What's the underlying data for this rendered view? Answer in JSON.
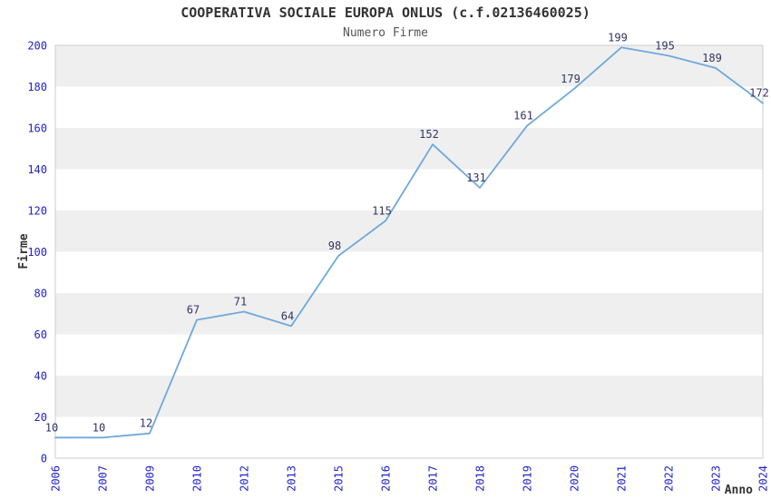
{
  "chart_data": {
    "type": "line",
    "title": "COOPERATIVA SOCIALE EUROPA ONLUS (c.f.02136460025)",
    "subtitle": "Numero Firme",
    "xlabel": "Anno",
    "ylabel": "Firme",
    "categories": [
      "2006",
      "2007",
      "2009",
      "2010",
      "2012",
      "2013",
      "2015",
      "2016",
      "2017",
      "2018",
      "2019",
      "2020",
      "2021",
      "2022",
      "2023",
      "2024"
    ],
    "values": [
      10,
      10,
      12,
      67,
      71,
      64,
      98,
      115,
      152,
      131,
      161,
      179,
      199,
      195,
      189,
      172
    ],
    "point_labels": [
      "10",
      "10",
      "12",
      "67",
      "71",
      "64",
      "98",
      "115",
      "152",
      "131",
      "161",
      "179",
      "199",
      "195",
      "189",
      "172"
    ],
    "ylim": [
      0,
      200
    ],
    "ytick_step": 20,
    "yticks": [
      0,
      20,
      40,
      60,
      80,
      100,
      120,
      140,
      160,
      180,
      200
    ],
    "grid": "alternating-horizontal-bands",
    "legend": "none",
    "colors": {
      "line": "#6fa8dc",
      "point_label": "#333366",
      "tick_label": "#2222cc",
      "band": "#efefef",
      "plot_border": "#cccccc",
      "title": "#333333",
      "subtitle": "#555555",
      "axis_title": "#333333",
      "background": "#ffffff"
    }
  }
}
